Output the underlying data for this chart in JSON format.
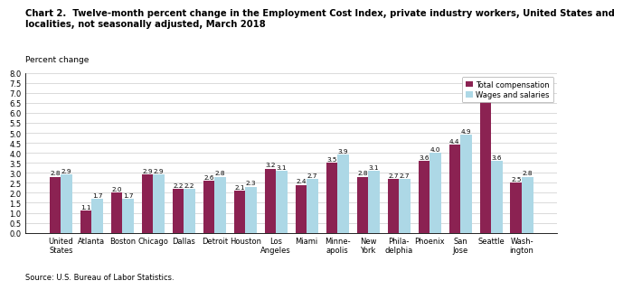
{
  "categories": [
    "United\nStates",
    "Atlanta",
    "Boston",
    "Chicago",
    "Dallas",
    "Detroit",
    "Houston",
    "Los\nAngeles",
    "Miami",
    "Minne-\napolis",
    "New\nYork",
    "Phila-\ndelphia",
    "Phoenix",
    "San\nJose",
    "Seattle",
    "Wash-\nington"
  ],
  "total_compensation": [
    2.8,
    1.1,
    2.0,
    2.9,
    2.2,
    2.6,
    2.1,
    3.2,
    2.4,
    3.5,
    2.8,
    2.7,
    3.6,
    4.4,
    7.2,
    2.5
  ],
  "wages_and_salaries": [
    2.9,
    1.7,
    1.7,
    2.9,
    2.2,
    2.8,
    2.3,
    3.1,
    2.7,
    3.9,
    3.1,
    2.7,
    4.0,
    4.9,
    3.6,
    2.8
  ],
  "total_color": "#8B2252",
  "wages_color": "#ADD8E6",
  "title_line1": "Chart 2.  Twelve-month percent change in the Employment Cost Index, private industry workers, United States and",
  "title_line2": "localities, not seasonally adjusted, March 2018",
  "ylabel": "Percent change",
  "ylim": [
    0.0,
    8.0
  ],
  "yticks": [
    0.0,
    0.5,
    1.0,
    1.5,
    2.0,
    2.5,
    3.0,
    3.5,
    4.0,
    4.5,
    5.0,
    5.5,
    6.0,
    6.5,
    7.0,
    7.5,
    8.0
  ],
  "legend_labels": [
    "Total compensation",
    "Wages and salaries"
  ],
  "source": "Source: U.S. Bureau of Labor Statistics.",
  "bar_width": 0.37,
  "label_fontsize": 5.2,
  "tick_fontsize": 6.0,
  "axis_label_fontsize": 6.5,
  "title_fontsize": 7.2,
  "source_fontsize": 6.0
}
